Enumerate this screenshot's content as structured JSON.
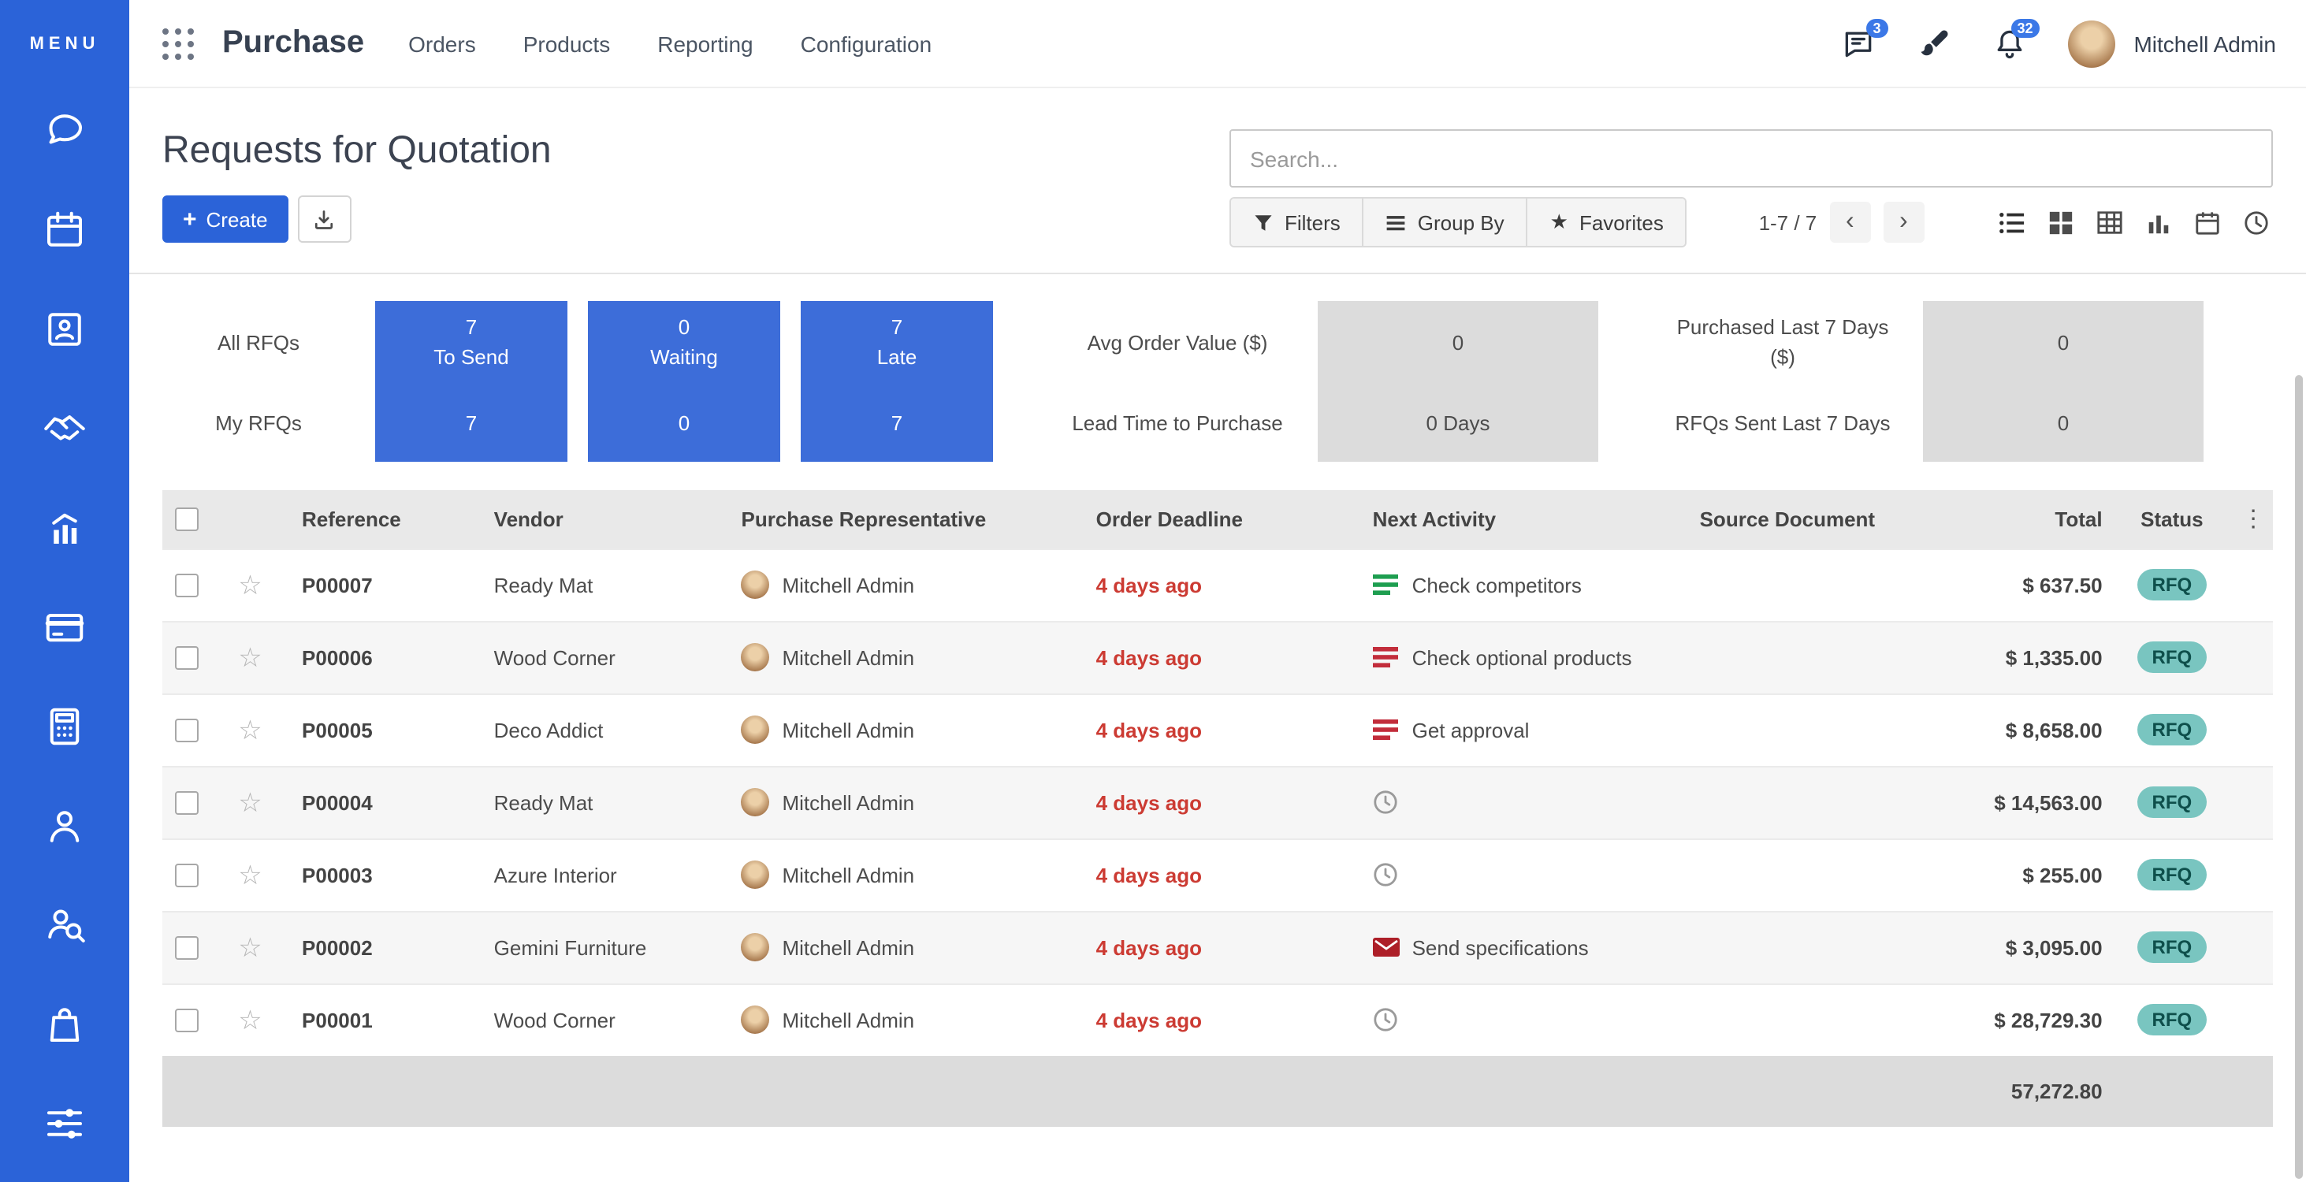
{
  "icons": {
    "plus": "+",
    "star_outline": "☆",
    "favorites_star": "★",
    "chevron_left": "‹",
    "chevron_right": "›",
    "kebab": "⋮"
  },
  "sidebar": {
    "menu_label": "MENU",
    "items": [
      "discuss",
      "calendar",
      "contacts",
      "crm",
      "sales",
      "point-of-sale",
      "accounting",
      "employees",
      "recruitment",
      "purchase",
      "settings"
    ]
  },
  "topbar": {
    "app_name": "Purchase",
    "nav_items": [
      "Orders",
      "Products",
      "Reporting",
      "Configuration"
    ],
    "messages_badge": "3",
    "notifications_badge": "32",
    "user_name": "Mitchell Admin"
  },
  "control_panel": {
    "title": "Requests for Quotation",
    "create_label": "Create",
    "search_placeholder": "Search...",
    "filters_label": "Filters",
    "group_by_label": "Group By",
    "favorites_label": "Favorites",
    "pager_text": "1-7 / 7"
  },
  "dashboard": {
    "row_labels": {
      "top": "All RFQs",
      "bottom": "My RFQs"
    },
    "tiles": [
      {
        "count": "7",
        "label": "To Send",
        "my_count": "7"
      },
      {
        "count": "0",
        "label": "Waiting",
        "my_count": "0"
      },
      {
        "count": "7",
        "label": "Late",
        "my_count": "7"
      }
    ],
    "stats_group1": {
      "top_label": "Avg Order Value ($)",
      "top_value": "0",
      "bottom_label": "Lead Time to Purchase",
      "bottom_value": "0 Days"
    },
    "stats_group2": {
      "top_label": "Purchased Last 7 Days ($)",
      "top_value": "0",
      "bottom_label": "RFQs Sent Last 7 Days",
      "bottom_value": "0"
    }
  },
  "table": {
    "columns": [
      "Reference",
      "Vendor",
      "Purchase Representative",
      "Order Deadline",
      "Next Activity",
      "Source Document",
      "Total",
      "Status"
    ],
    "rows": [
      {
        "reference": "P00007",
        "vendor": "Ready Mat",
        "representative": "Mitchell Admin",
        "deadline": "4 days ago",
        "activity": "Check competitors",
        "activity_icon": "list-green",
        "source": "",
        "total": "$ 637.50",
        "status": "RFQ"
      },
      {
        "reference": "P00006",
        "vendor": "Wood Corner",
        "representative": "Mitchell Admin",
        "deadline": "4 days ago",
        "activity": "Check optional products",
        "activity_icon": "list-red",
        "source": "",
        "total": "$ 1,335.00",
        "status": "RFQ"
      },
      {
        "reference": "P00005",
        "vendor": "Deco Addict",
        "representative": "Mitchell Admin",
        "deadline": "4 days ago",
        "activity": "Get approval",
        "activity_icon": "list-red",
        "source": "",
        "total": "$ 8,658.00",
        "status": "RFQ"
      },
      {
        "reference": "P00004",
        "vendor": "Ready Mat",
        "representative": "Mitchell Admin",
        "deadline": "4 days ago",
        "activity": "",
        "activity_icon": "clock",
        "source": "",
        "total": "$ 14,563.00",
        "status": "RFQ"
      },
      {
        "reference": "P00003",
        "vendor": "Azure Interior",
        "representative": "Mitchell Admin",
        "deadline": "4 days ago",
        "activity": "",
        "activity_icon": "clock",
        "source": "",
        "total": "$ 255.00",
        "status": "RFQ"
      },
      {
        "reference": "P00002",
        "vendor": "Gemini Furniture",
        "representative": "Mitchell Admin",
        "deadline": "4 days ago",
        "activity": "Send specifications",
        "activity_icon": "envelope",
        "source": "",
        "total": "$ 3,095.00",
        "status": "RFQ"
      },
      {
        "reference": "P00001",
        "vendor": "Wood Corner",
        "representative": "Mitchell Admin",
        "deadline": "4 days ago",
        "activity": "",
        "activity_icon": "clock",
        "source": "",
        "total": "$ 28,729.30",
        "status": "RFQ"
      }
    ],
    "footer_total": "57,272.80"
  },
  "colors": {
    "sidebar_blue": "#2b63d8",
    "tile_blue": "#3d6dd9",
    "deadline_red": "#cc3b33",
    "status_badge_bg": "#79c5c0"
  }
}
